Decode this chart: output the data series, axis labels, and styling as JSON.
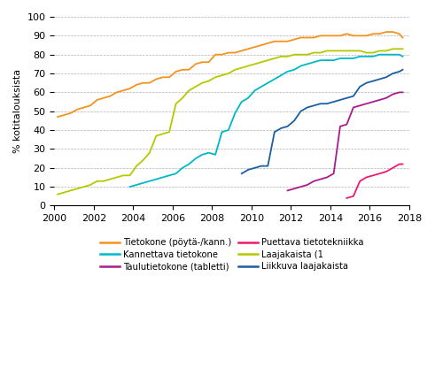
{
  "ylabel": "% kotitalouksista",
  "xlim": [
    2000,
    2018
  ],
  "ylim": [
    0,
    100
  ],
  "xticks": [
    2000,
    2002,
    2004,
    2006,
    2008,
    2010,
    2012,
    2014,
    2016,
    2018
  ],
  "yticks": [
    0,
    10,
    20,
    30,
    40,
    50,
    60,
    70,
    80,
    90,
    100
  ],
  "series": {
    "Tietokone (pöytä-/kann.)": {
      "color": "#f5921e",
      "x": [
        2000.17,
        2000.5,
        2000.83,
        2001.17,
        2001.5,
        2001.83,
        2002.17,
        2002.5,
        2002.83,
        2003.17,
        2003.5,
        2003.83,
        2004.17,
        2004.5,
        2004.83,
        2005.17,
        2005.5,
        2005.83,
        2006.17,
        2006.5,
        2006.83,
        2007.17,
        2007.5,
        2007.83,
        2008.17,
        2008.5,
        2008.83,
        2009.17,
        2009.5,
        2009.83,
        2010.17,
        2010.5,
        2010.83,
        2011.17,
        2011.5,
        2011.83,
        2012.17,
        2012.5,
        2012.83,
        2013.17,
        2013.5,
        2013.83,
        2014.17,
        2014.5,
        2014.83,
        2015.17,
        2015.5,
        2015.83,
        2016.17,
        2016.5,
        2016.83,
        2017.17,
        2017.5,
        2017.67
      ],
      "y": [
        47,
        48,
        49,
        51,
        52,
        53,
        56,
        57,
        58,
        60,
        61,
        62,
        64,
        65,
        65,
        67,
        68,
        68,
        71,
        72,
        72,
        75,
        76,
        76,
        80,
        80,
        81,
        81,
        82,
        83,
        84,
        85,
        86,
        87,
        87,
        87,
        88,
        89,
        89,
        89,
        90,
        90,
        90,
        90,
        91,
        90,
        90,
        90,
        91,
        91,
        92,
        92,
        91,
        89
      ]
    },
    "Kannettava tietokone": {
      "color": "#00b9c6",
      "x": [
        2003.83,
        2004.17,
        2004.5,
        2004.83,
        2005.17,
        2005.5,
        2005.83,
        2006.17,
        2006.5,
        2006.83,
        2007.17,
        2007.5,
        2007.83,
        2008.17,
        2008.5,
        2008.83,
        2009.17,
        2009.5,
        2009.83,
        2010.17,
        2010.5,
        2010.83,
        2011.17,
        2011.5,
        2011.83,
        2012.17,
        2012.5,
        2012.83,
        2013.17,
        2013.5,
        2013.83,
        2014.17,
        2014.5,
        2014.83,
        2015.17,
        2015.5,
        2015.83,
        2016.17,
        2016.5,
        2016.83,
        2017.17,
        2017.5,
        2017.67
      ],
      "y": [
        10,
        11,
        12,
        13,
        14,
        15,
        16,
        17,
        20,
        22,
        25,
        27,
        28,
        27,
        39,
        40,
        49,
        55,
        57,
        61,
        63,
        65,
        67,
        69,
        71,
        72,
        74,
        75,
        76,
        77,
        77,
        77,
        78,
        78,
        78,
        79,
        79,
        79,
        80,
        80,
        80,
        80,
        79
      ]
    },
    "Taulutietokone (tabletti)": {
      "color": "#aa1a8c",
      "x": [
        2011.83,
        2012.17,
        2012.5,
        2012.83,
        2013.17,
        2013.5,
        2013.83,
        2014.17,
        2014.5,
        2014.83,
        2015.17,
        2015.5,
        2015.83,
        2016.17,
        2016.5,
        2016.83,
        2017.17,
        2017.5,
        2017.67
      ],
      "y": [
        8,
        9,
        10,
        11,
        13,
        14,
        15,
        17,
        42,
        43,
        52,
        53,
        54,
        55,
        56,
        57,
        59,
        60,
        60
      ]
    },
    "Puettava tietotekniikka": {
      "color": "#f0196e",
      "x": [
        2014.83,
        2015.17,
        2015.5,
        2015.83,
        2016.17,
        2016.5,
        2016.83,
        2017.17,
        2017.5,
        2017.67
      ],
      "y": [
        4,
        5,
        13,
        15,
        16,
        17,
        18,
        20,
        22,
        22
      ]
    },
    "Laajakaista (1": {
      "color": "#b5c900",
      "x": [
        2000.17,
        2000.5,
        2000.83,
        2001.17,
        2001.5,
        2001.83,
        2002.17,
        2002.5,
        2002.83,
        2003.17,
        2003.5,
        2003.83,
        2004.17,
        2004.5,
        2004.83,
        2005.17,
        2005.5,
        2005.83,
        2006.17,
        2006.5,
        2006.83,
        2007.17,
        2007.5,
        2007.83,
        2008.17,
        2008.5,
        2008.83,
        2009.17,
        2009.5,
        2009.83,
        2010.17,
        2010.5,
        2010.83,
        2011.17,
        2011.5,
        2011.83,
        2012.17,
        2012.5,
        2012.83,
        2013.17,
        2013.5,
        2013.83,
        2014.17,
        2014.5,
        2014.83,
        2015.17,
        2015.5,
        2015.83,
        2016.17,
        2016.5,
        2016.83,
        2017.17,
        2017.5,
        2017.67
      ],
      "y": [
        6,
        7,
        8,
        9,
        10,
        11,
        13,
        13,
        14,
        15,
        16,
        16,
        21,
        24,
        28,
        37,
        38,
        39,
        54,
        57,
        61,
        63,
        65,
        66,
        68,
        69,
        70,
        72,
        73,
        74,
        75,
        76,
        77,
        78,
        79,
        79,
        80,
        80,
        80,
        81,
        81,
        82,
        82,
        82,
        82,
        82,
        82,
        81,
        81,
        82,
        82,
        83,
        83,
        83
      ]
    },
    "Liikkuva laajakaista": {
      "color": "#1a5fa0",
      "x": [
        2009.5,
        2009.67,
        2009.83,
        2010.17,
        2010.5,
        2010.83,
        2011.17,
        2011.5,
        2011.83,
        2012.17,
        2012.5,
        2012.83,
        2013.17,
        2013.5,
        2013.83,
        2014.17,
        2014.5,
        2014.83,
        2015.17,
        2015.5,
        2015.83,
        2016.17,
        2016.5,
        2016.83,
        2017.17,
        2017.5,
        2017.67
      ],
      "y": [
        17,
        18,
        19,
        20,
        21,
        21,
        39,
        41,
        42,
        45,
        50,
        52,
        53,
        54,
        54,
        55,
        56,
        57,
        58,
        63,
        65,
        66,
        67,
        68,
        70,
        71,
        72
      ]
    }
  },
  "legend_order": [
    [
      "Tietokone (pöytä-/kann.)",
      "#f5921e"
    ],
    [
      "Kannettava tietokone",
      "#00b9c6"
    ],
    [
      "Taulutietokone (tabletti)",
      "#aa1a8c"
    ],
    [
      "Puettava tietotekniikka",
      "#f0196e"
    ],
    [
      "Laajakaista (1",
      "#b5c900"
    ],
    [
      "Liikkuva laajakaista",
      "#1a5fa0"
    ]
  ]
}
